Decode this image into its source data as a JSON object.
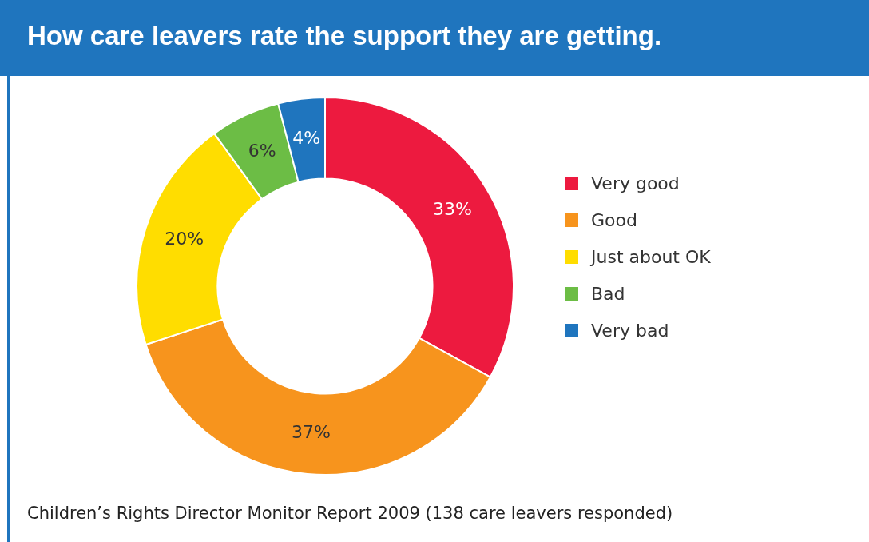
{
  "chart_data": {
    "type": "donut",
    "title": "How care leavers rate the support they are getting.",
    "categories": [
      "Very good",
      "Good",
      "Just about OK",
      "Bad",
      "Very bad"
    ],
    "values": [
      33,
      37,
      20,
      6,
      4
    ],
    "colors": [
      "#ed1a3f",
      "#f7941d",
      "#ffdd00",
      "#6cbd45",
      "#1f75be"
    ],
    "value_labels": [
      "33%",
      "37%",
      "20%",
      "6%",
      "4%"
    ],
    "legend": "right",
    "annotations": [
      "Children’s Rights Director Monitor Report 2009 (138 care leavers responded)"
    ]
  }
}
